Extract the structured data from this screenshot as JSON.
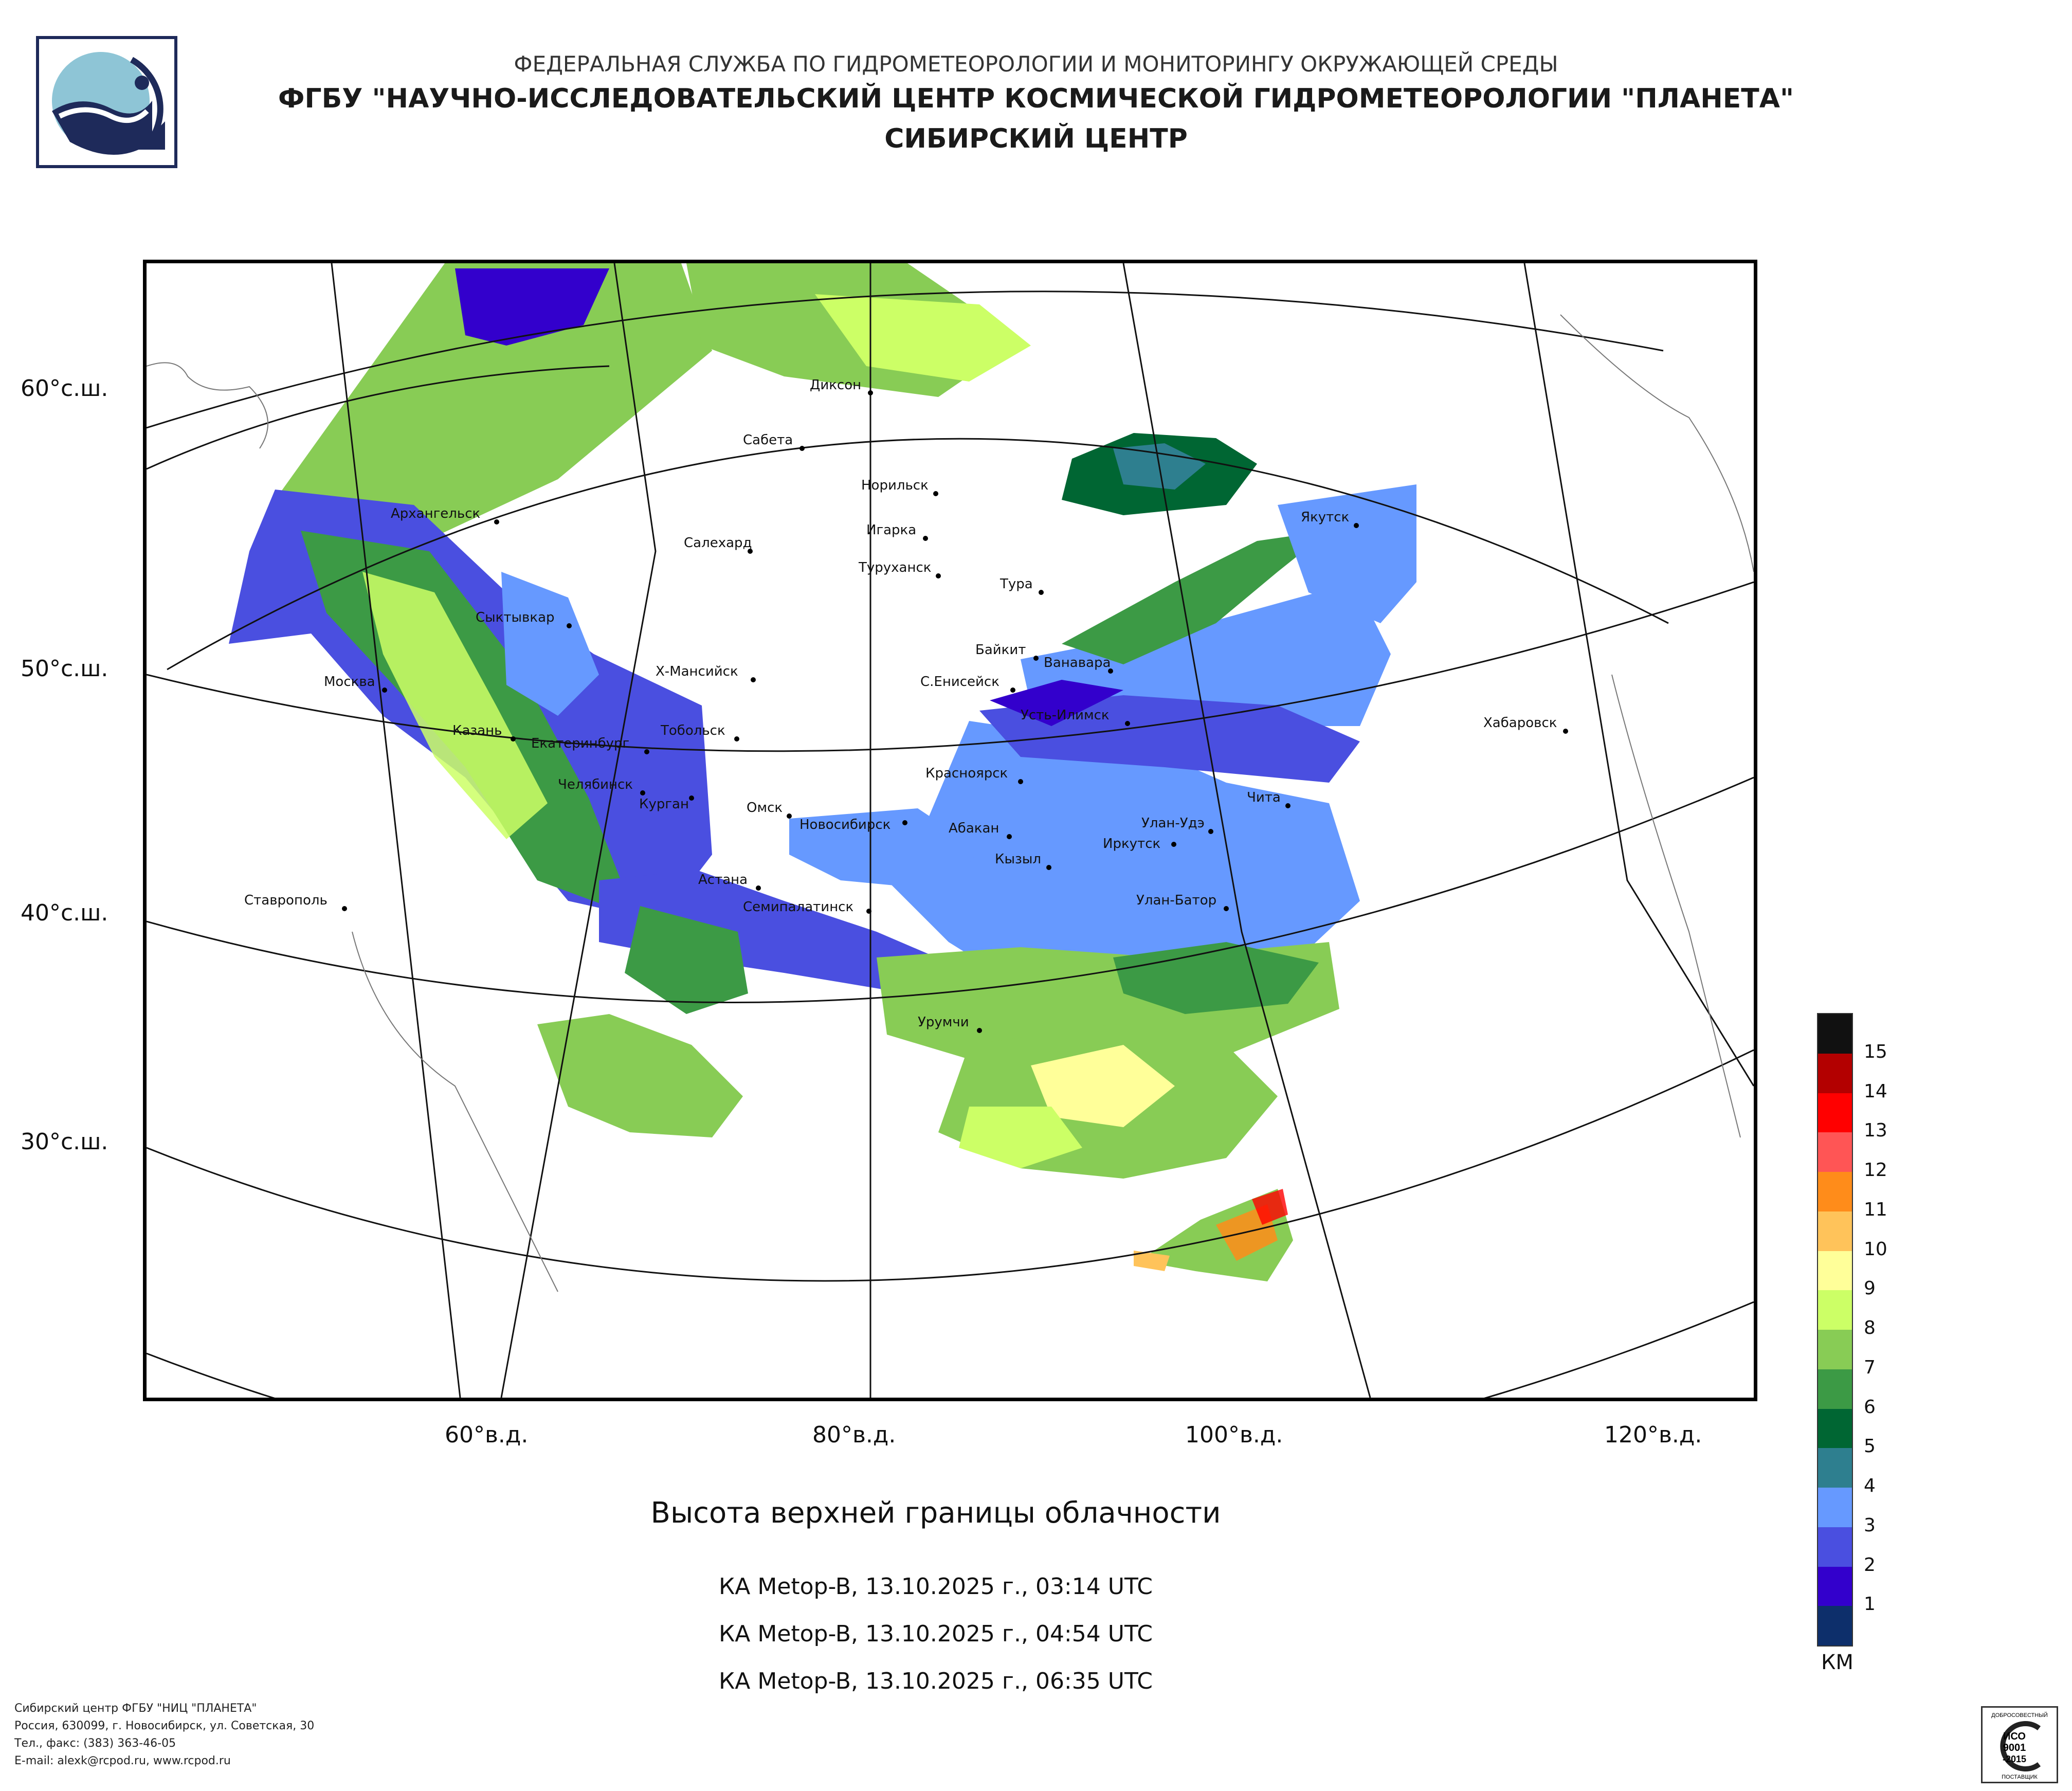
{
  "header": {
    "line1": "ФЕДЕРАЛЬНАЯ СЛУЖБА ПО ГИДРОМЕТЕОРОЛОГИИ И МОНИТОРИНГУ ОКРУЖАЮЩЕЙ СРЕДЫ",
    "line2": "ФГБУ \"НАУЧНО-ИССЛЕДОВАТЕЛЬСКИЙ ЦЕНТР КОСМИЧЕСКОЙ ГИДРОМЕТЕОРОЛОГИИ \"ПЛАНЕТА\"",
    "line3": "СИБИРСКИЙ ЦЕНТР"
  },
  "logo": {
    "icon": "planeta-logo-icon",
    "colors": {
      "frame": "#1e2a5a",
      "sky": "#8ec5d6",
      "wave": "#1e2a5a"
    }
  },
  "map": {
    "lat_labels": [
      "60°с.ш.",
      "50°с.ш.",
      "40°с.ш.",
      "30°с.ш."
    ],
    "lon_labels": [
      "60°в.д.",
      "80°в.д.",
      "100°в.д.",
      "120°в.д."
    ],
    "cities": [
      "Диксон",
      "Сабета",
      "Норильск",
      "Архангельск",
      "Салехард",
      "Игарка",
      "Туруханск",
      "Якутск",
      "Тура",
      "Сыктывкар",
      "Байкит",
      "Ванавара",
      "Х-Мансийск",
      "С.Енисейск",
      "Москва",
      "Усть-Илимск",
      "Хабаровск",
      "Казань",
      "Тобольск",
      "Екатеринбург",
      "Красноярск",
      "Челябинск",
      "Курган",
      "Омск",
      "Чита",
      "Новосибирск",
      "Абакан",
      "Улан-Удэ",
      "Иркутск",
      "Кызыл",
      "Астана",
      "Ставрополь",
      "Улан-Батор",
      "Семипалатинск",
      "Урумчи"
    ]
  },
  "title": "Высота верхней границы облачности",
  "passes": [
    "КА Metop-B, 13.10.2025 г., 03:14 UTC",
    "КА Metop-B, 13.10.2025 г., 04:54 UTC",
    "КА Metop-B, 13.10.2025 г., 06:35 UTC"
  ],
  "legend": {
    "unit": "КМ",
    "levels": [
      {
        "label": "15",
        "color": "#111111"
      },
      {
        "label": "14",
        "color": "#b30000"
      },
      {
        "label": "13",
        "color": "#ff0000"
      },
      {
        "label": "12",
        "color": "#ff5555"
      },
      {
        "label": "11",
        "color": "#ff8c1a"
      },
      {
        "label": "10",
        "color": "#ffc35a"
      },
      {
        "label": "9",
        "color": "#ffff99"
      },
      {
        "label": "8",
        "color": "#ccff66"
      },
      {
        "label": "7",
        "color": "#88cc55"
      },
      {
        "label": "6",
        "color": "#3c9a45"
      },
      {
        "label": "5",
        "color": "#006633"
      },
      {
        "label": "4",
        "color": "#2e7f8f"
      },
      {
        "label": "3",
        "color": "#6699ff"
      },
      {
        "label": "2",
        "color": "#4a4fe0"
      },
      {
        "label": "1",
        "color": "#3300cc"
      },
      {
        "label": "",
        "color": "#0d2f6b"
      }
    ]
  },
  "footer": {
    "line1": "Сибирский центр ФГБУ \"НИЦ \"ПЛАНЕТА\"",
    "line2": "Россия, 630099, г. Новосибирск, ул. Советская, 30",
    "line3": "Тел., факс: (383) 363-46-05",
    "line4": "E-mail: alexk@rcpod.ru, www.rcpod.ru"
  },
  "iso_badge": {
    "top_text": "ДОБРОСОВЕСТНЫЙ",
    "main": "ИСО",
    "num": "9001",
    "year": "-2015",
    "bottom_text": "ПОСТАВЩИК"
  }
}
